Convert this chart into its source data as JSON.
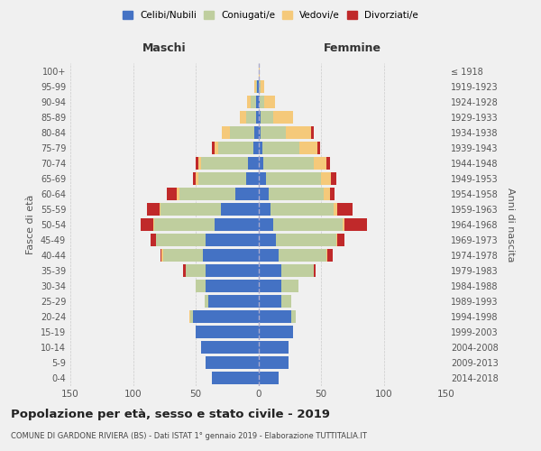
{
  "age_groups": [
    "0-4",
    "5-9",
    "10-14",
    "15-19",
    "20-24",
    "25-29",
    "30-34",
    "35-39",
    "40-44",
    "45-49",
    "50-54",
    "55-59",
    "60-64",
    "65-69",
    "70-74",
    "75-79",
    "80-84",
    "85-89",
    "90-94",
    "95-99",
    "100+"
  ],
  "birth_years": [
    "2014-2018",
    "2009-2013",
    "2004-2008",
    "1999-2003",
    "1994-1998",
    "1989-1993",
    "1984-1988",
    "1979-1983",
    "1974-1978",
    "1969-1973",
    "1964-1968",
    "1959-1963",
    "1954-1958",
    "1949-1953",
    "1944-1948",
    "1939-1943",
    "1934-1938",
    "1929-1933",
    "1924-1928",
    "1919-1923",
    "≤ 1918"
  ],
  "colors": {
    "celibe": "#4472C4",
    "coniugato": "#BFCE9E",
    "vedovo": "#F5C97A",
    "divorziato": "#C0292A"
  },
  "males": {
    "celibe": [
      37,
      42,
      46,
      50,
      52,
      40,
      42,
      42,
      44,
      42,
      35,
      30,
      18,
      10,
      8,
      4,
      3,
      2,
      2,
      1,
      0
    ],
    "coniugato": [
      0,
      0,
      0,
      0,
      2,
      3,
      8,
      16,
      32,
      40,
      48,
      48,
      45,
      38,
      38,
      28,
      20,
      8,
      4,
      1,
      0
    ],
    "vedovo": [
      0,
      0,
      0,
      0,
      1,
      0,
      0,
      0,
      1,
      0,
      1,
      1,
      2,
      2,
      2,
      3,
      6,
      5,
      3,
      1,
      0
    ],
    "divorziato": [
      0,
      0,
      0,
      0,
      0,
      0,
      0,
      2,
      1,
      4,
      10,
      10,
      8,
      2,
      2,
      2,
      0,
      0,
      0,
      0,
      0
    ]
  },
  "females": {
    "nubile": [
      16,
      24,
      24,
      28,
      26,
      18,
      18,
      18,
      16,
      14,
      12,
      10,
      8,
      6,
      4,
      3,
      2,
      2,
      1,
      0,
      0
    ],
    "coniugata": [
      0,
      0,
      0,
      0,
      4,
      8,
      14,
      26,
      38,
      48,
      55,
      50,
      44,
      44,
      40,
      30,
      20,
      10,
      4,
      2,
      0
    ],
    "vedova": [
      0,
      0,
      0,
      0,
      0,
      0,
      0,
      0,
      1,
      1,
      2,
      3,
      5,
      8,
      10,
      14,
      20,
      16,
      8,
      3,
      1
    ],
    "divorziata": [
      0,
      0,
      0,
      0,
      0,
      0,
      0,
      2,
      4,
      6,
      18,
      12,
      4,
      4,
      3,
      2,
      2,
      0,
      0,
      0,
      0
    ]
  },
  "title": "Popolazione per età, sesso e stato civile - 2019",
  "subtitle": "COMUNE DI GARDONE RIVIERA (BS) - Dati ISTAT 1° gennaio 2019 - Elaborazione TUTTITALIA.IT",
  "xlabel_left": "Maschi",
  "xlabel_right": "Femmine",
  "ylabel_left": "Fasce di età",
  "ylabel_right": "Anni di nascita",
  "xlim": 150,
  "legend_labels": [
    "Celibi/Nubili",
    "Coniugati/e",
    "Vedovi/e",
    "Divorziati/e"
  ],
  "bg_color": "#F0F0F0",
  "grid_color": "#CCCCCC"
}
